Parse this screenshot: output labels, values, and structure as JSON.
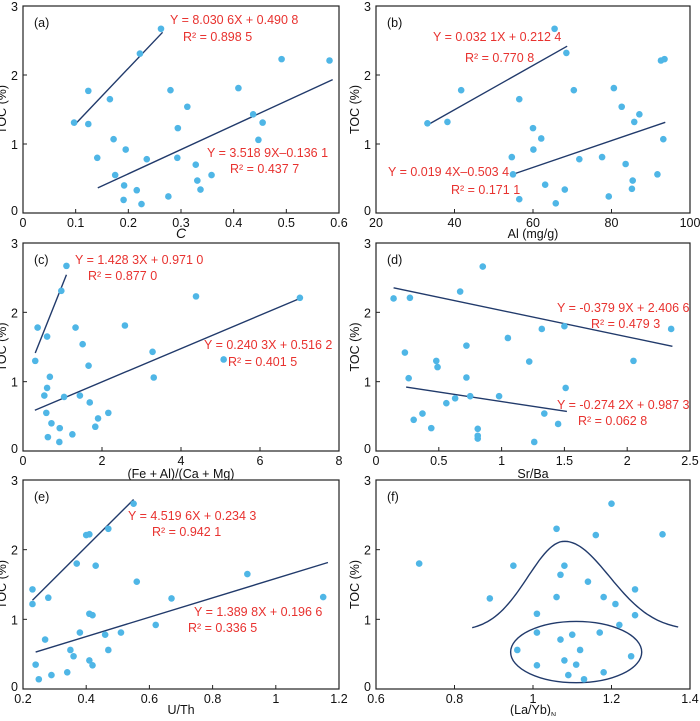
{
  "colors": {
    "points": "#4fb6e6",
    "fit_line": "#213a6b",
    "equation": "#e8322f",
    "axis": "#222222"
  },
  "chart_data": [
    {
      "panel": "(a)",
      "type": "scatter",
      "xlabel": "C",
      "xlabel_italic": true,
      "ylabel": "TOC (%)",
      "xlim": [
        0,
        0.6
      ],
      "ylim": [
        0,
        3
      ],
      "xticks": [
        "0",
        "0.1",
        "0.2",
        "0.3",
        "0.4",
        "0.5",
        "0.6"
      ],
      "yticks": [
        "0",
        "1",
        "2",
        "3"
      ],
      "grid": false,
      "x": [
        0.097,
        0.124,
        0.124,
        0.262,
        0.222,
        0.165,
        0.172,
        0.141,
        0.195,
        0.175,
        0.192,
        0.191,
        0.216,
        0.225,
        0.235,
        0.276,
        0.28,
        0.294,
        0.293,
        0.312,
        0.328,
        0.331,
        0.337,
        0.358,
        0.409,
        0.437,
        0.455,
        0.447,
        0.491,
        0.582
      ],
      "y": [
        1.31,
        1.77,
        1.29,
        2.67,
        2.31,
        1.65,
        1.07,
        0.8,
        0.92,
        0.55,
        0.4,
        0.19,
        0.33,
        0.13,
        0.78,
        0.24,
        1.78,
        1.23,
        0.8,
        1.54,
        0.7,
        0.47,
        0.34,
        0.55,
        1.81,
        1.43,
        1.31,
        1.06,
        2.23,
        2.21
      ],
      "fits": [
        {
          "slope": 8.0306,
          "intercept": 0.4908,
          "x_range": [
            0.097,
            0.265
          ],
          "equation": "Y = 8.030 6X + 0.490 8",
          "r2": "R² = 0.898 5"
        },
        {
          "slope": 3.5189,
          "intercept": -0.1361,
          "x_range": [
            0.142,
            0.588
          ],
          "equation": "Y = 3.518 9X–0.136 1",
          "r2": "R² = 0.437 7"
        }
      ]
    },
    {
      "panel": "(b)",
      "type": "scatter",
      "xlabel": "Al (mg/g)",
      "ylabel": "TOC (%)",
      "xlim": [
        20,
        100
      ],
      "ylim": [
        0,
        3
      ],
      "xticks": [
        "20",
        "40",
        "60",
        "80",
        "100"
      ],
      "yticks": [
        "0",
        "1",
        "2",
        "3"
      ],
      "grid": false,
      "x": [
        33.1,
        38.2,
        41.7,
        56.5,
        65.5,
        68.5,
        60.0,
        62.1,
        60.1,
        54.6,
        54.9,
        56.5,
        63.1,
        68.1,
        65.8,
        70.4,
        71.8,
        77.6,
        80.6,
        82.6,
        87.1,
        85.8,
        83.6,
        85.4,
        85.2,
        79.3,
        91.7,
        93.2,
        92.6,
        93.5
      ],
      "y": [
        1.3,
        1.32,
        1.78,
        1.65,
        2.67,
        2.32,
        1.23,
        1.08,
        0.92,
        0.81,
        0.56,
        0.2,
        0.41,
        0.34,
        0.14,
        1.78,
        0.78,
        0.81,
        1.81,
        1.54,
        1.43,
        1.32,
        0.71,
        0.47,
        0.35,
        0.24,
        0.56,
        1.07,
        2.21,
        2.23
      ],
      "fits": [
        {
          "slope": 0.0321,
          "intercept": 0.2124,
          "x_range": [
            33,
            68.7
          ],
          "equation": "Y = 0.032 1X + 0.212 4",
          "r2": "R² = 0.770 8"
        },
        {
          "slope": 0.0194,
          "intercept": -0.5034,
          "x_range": [
            55,
            93.7
          ],
          "equation": "Y = 0.019 4X–0.503 4",
          "r2": "R² = 0.171 1"
        }
      ]
    },
    {
      "panel": "(c)",
      "type": "scatter",
      "xlabel": "(Fe + Al)/(Ca + Mg)",
      "ylabel": "TOC (%)",
      "xlim": [
        0,
        8
      ],
      "ylim": [
        0,
        3
      ],
      "xticks": [
        "0",
        "2",
        "4",
        "6",
        "8"
      ],
      "yticks": [
        "0",
        "1",
        "2",
        "3"
      ],
      "grid": false,
      "x": [
        0.31,
        0.37,
        0.61,
        1.1,
        0.97,
        0.68,
        0.61,
        0.54,
        0.59,
        0.72,
        0.63,
        0.93,
        0.92,
        1.04,
        1.25,
        1.33,
        1.51,
        1.66,
        1.44,
        1.69,
        1.9,
        1.83,
        2.16,
        2.58,
        3.28,
        3.31,
        4.38,
        5.08,
        7.01
      ],
      "y": [
        1.3,
        1.78,
        1.65,
        2.67,
        2.31,
        1.07,
        0.91,
        0.8,
        0.55,
        0.4,
        0.2,
        0.33,
        0.13,
        0.78,
        0.24,
        1.78,
        1.54,
        1.23,
        0.8,
        0.7,
        0.47,
        0.35,
        0.55,
        1.81,
        1.43,
        1.06,
        2.23,
        1.32,
        2.21
      ],
      "fits": [
        {
          "slope": 1.4283,
          "intercept": 0.971,
          "x_range": [
            0.31,
            1.1
          ],
          "equation": "Y = 1.428 3X + 0.971 0",
          "r2": "R² = 0.877 0"
        },
        {
          "slope": 0.2403,
          "intercept": 0.5162,
          "x_range": [
            0.3,
            7.0
          ],
          "equation": "Y = 0.240 3X + 0.516 2",
          "r2": "R² = 0.401 5"
        }
      ]
    },
    {
      "panel": "(d)",
      "type": "scatter",
      "xlabel": "Sr/Ba",
      "ylabel": "TOC (%)",
      "xlim": [
        0,
        2.5
      ],
      "ylim": [
        0,
        3
      ],
      "xticks": [
        "0",
        "0.5",
        "1",
        "1.5",
        "2",
        "2.5"
      ],
      "yticks": [
        "0",
        "1",
        "2",
        "3"
      ],
      "grid": false,
      "x": [
        0.14,
        0.27,
        0.67,
        0.85,
        0.23,
        0.48,
        0.49,
        0.26,
        0.72,
        0.72,
        0.3,
        0.37,
        0.44,
        0.56,
        0.63,
        0.75,
        0.98,
        0.81,
        0.81,
        0.81,
        1.05,
        1.22,
        1.32,
        1.26,
        1.34,
        1.45,
        1.5,
        1.51,
        2.05,
        2.35
      ],
      "y": [
        2.2,
        2.21,
        2.3,
        2.66,
        1.42,
        1.3,
        1.21,
        1.05,
        1.52,
        1.06,
        0.45,
        0.54,
        0.33,
        0.69,
        0.76,
        0.79,
        0.79,
        0.32,
        0.22,
        0.18,
        1.63,
        1.29,
        1.76,
        0.13,
        0.54,
        0.39,
        1.8,
        0.91,
        1.3,
        1.76
      ],
      "fits": [
        {
          "slope": -0.3799,
          "intercept": 2.4066,
          "x_range": [
            0.14,
            2.36
          ],
          "equation": "Y = -0.379 9X + 2.406 6",
          "r2": "R² = 0.479 3"
        },
        {
          "slope": -0.2742,
          "intercept": 0.9873,
          "x_range": [
            0.24,
            1.52
          ],
          "equation": "Y = -0.274 2X + 0.987 3",
          "r2": "R² = 0.062 8"
        }
      ]
    },
    {
      "panel": "(e)",
      "type": "scatter",
      "xlabel": "U/Th",
      "ylabel": "TOC (%)",
      "xlim": [
        0.2,
        1.2
      ],
      "ylim": [
        0,
        3
      ],
      "xticks": [
        "0.2",
        "0.4",
        "0.6",
        "0.8",
        "1",
        "1.2"
      ],
      "yticks": [
        "0",
        "1",
        "2",
        "3"
      ],
      "grid": false,
      "x": [
        0.23,
        0.23,
        0.28,
        0.24,
        0.25,
        0.27,
        0.29,
        0.34,
        0.35,
        0.36,
        0.37,
        0.38,
        0.4,
        0.41,
        0.41,
        0.42,
        0.41,
        0.42,
        0.43,
        0.46,
        0.47,
        0.47,
        0.51,
        0.55,
        0.56,
        0.62,
        0.67,
        0.91,
        1.15
      ],
      "y": [
        1.43,
        1.22,
        1.31,
        0.35,
        0.14,
        0.71,
        0.2,
        0.24,
        0.56,
        0.47,
        1.8,
        0.81,
        2.21,
        2.22,
        1.08,
        1.06,
        0.41,
        0.34,
        1.77,
        0.78,
        0.56,
        2.3,
        0.81,
        2.66,
        1.54,
        0.92,
        1.3,
        1.65,
        1.32
      ],
      "fits": [
        {
          "slope": 4.5196,
          "intercept": 0.2343,
          "x_range": [
            0.23,
            0.55
          ],
          "equation": "Y = 4.519 6X + 0.234 3",
          "r2": "R² = 0.942 1"
        },
        {
          "slope": 1.3898,
          "intercept": 0.1966,
          "x_range": [
            0.24,
            1.165
          ],
          "equation": "Y = 1.389 8X + 0.196 6",
          "r2": "R² = 0.336 5"
        }
      ]
    },
    {
      "panel": "(f)",
      "type": "scatter",
      "xlabel": "(La/Yb)",
      "xlabel_sub": "N",
      "ylabel": "TOC (%)",
      "xlim": [
        0.6,
        1.4
      ],
      "ylim": [
        0,
        3
      ],
      "xticks": [
        "0.6",
        "0.8",
        "1",
        "1.2",
        "1.4"
      ],
      "yticks": [
        "0",
        "1",
        "2",
        "3"
      ],
      "grid": false,
      "x": [
        0.71,
        0.89,
        0.95,
        0.96,
        1.01,
        1.01,
        1.01,
        1.06,
        1.06,
        1.07,
        1.08,
        1.07,
        1.08,
        1.09,
        1.1,
        1.11,
        1.12,
        1.13,
        1.14,
        1.16,
        1.17,
        1.18,
        1.18,
        1.2,
        1.21,
        1.22,
        1.25,
        1.26,
        1.26,
        1.33
      ],
      "y": [
        1.8,
        1.3,
        1.77,
        0.56,
        1.08,
        0.81,
        0.34,
        2.3,
        1.32,
        1.64,
        1.77,
        0.71,
        0.41,
        0.2,
        0.78,
        0.35,
        0.56,
        0.14,
        1.54,
        2.21,
        0.81,
        0.24,
        1.32,
        2.66,
        1.22,
        0.92,
        0.47,
        1.43,
        1.06,
        2.22
      ],
      "envelope_curve": {
        "x_range": [
          0.845,
          1.37
        ],
        "peak": [
          1.08,
          2.12
        ],
        "end_values": [
          0.88,
          0.89
        ]
      },
      "ellipse": {
        "center": [
          1.11,
          0.53
        ],
        "x_radius": 0.167,
        "y_radius": 0.44
      }
    }
  ]
}
